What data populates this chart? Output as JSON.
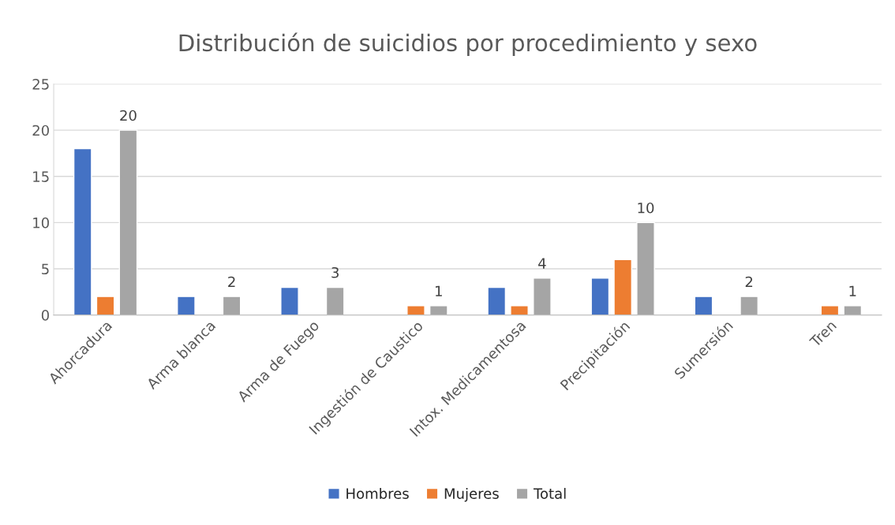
{
  "chart_data": {
    "type": "bar",
    "title": "Distribución de suicidios por procedimiento y sexo",
    "categories": [
      "Ahorcadura",
      "Arma blanca",
      "Arma de Fuego",
      "Ingestión de Caustico",
      "Intox. Medicamentosa",
      "Precipitación",
      "Sumersión",
      "Tren"
    ],
    "series": [
      {
        "name": "Hombres",
        "color": "#4472c4",
        "values": [
          18,
          2,
          3,
          null,
          3,
          4,
          2,
          null
        ]
      },
      {
        "name": "Mujeres",
        "color": "#ed7d31",
        "values": [
          2,
          null,
          null,
          1,
          1,
          6,
          null,
          1
        ]
      },
      {
        "name": "Total",
        "color": "#a5a5a5",
        "values": [
          20,
          2,
          3,
          1,
          4,
          10,
          2,
          1
        ],
        "value_labels": [
          "20",
          "2",
          "3",
          "1",
          "4",
          "10",
          "2",
          "1"
        ]
      }
    ],
    "ylim": [
      0,
      25
    ],
    "yticks": [
      0,
      5,
      10,
      15,
      20,
      25
    ],
    "grid": "y",
    "legend": "bottom"
  }
}
